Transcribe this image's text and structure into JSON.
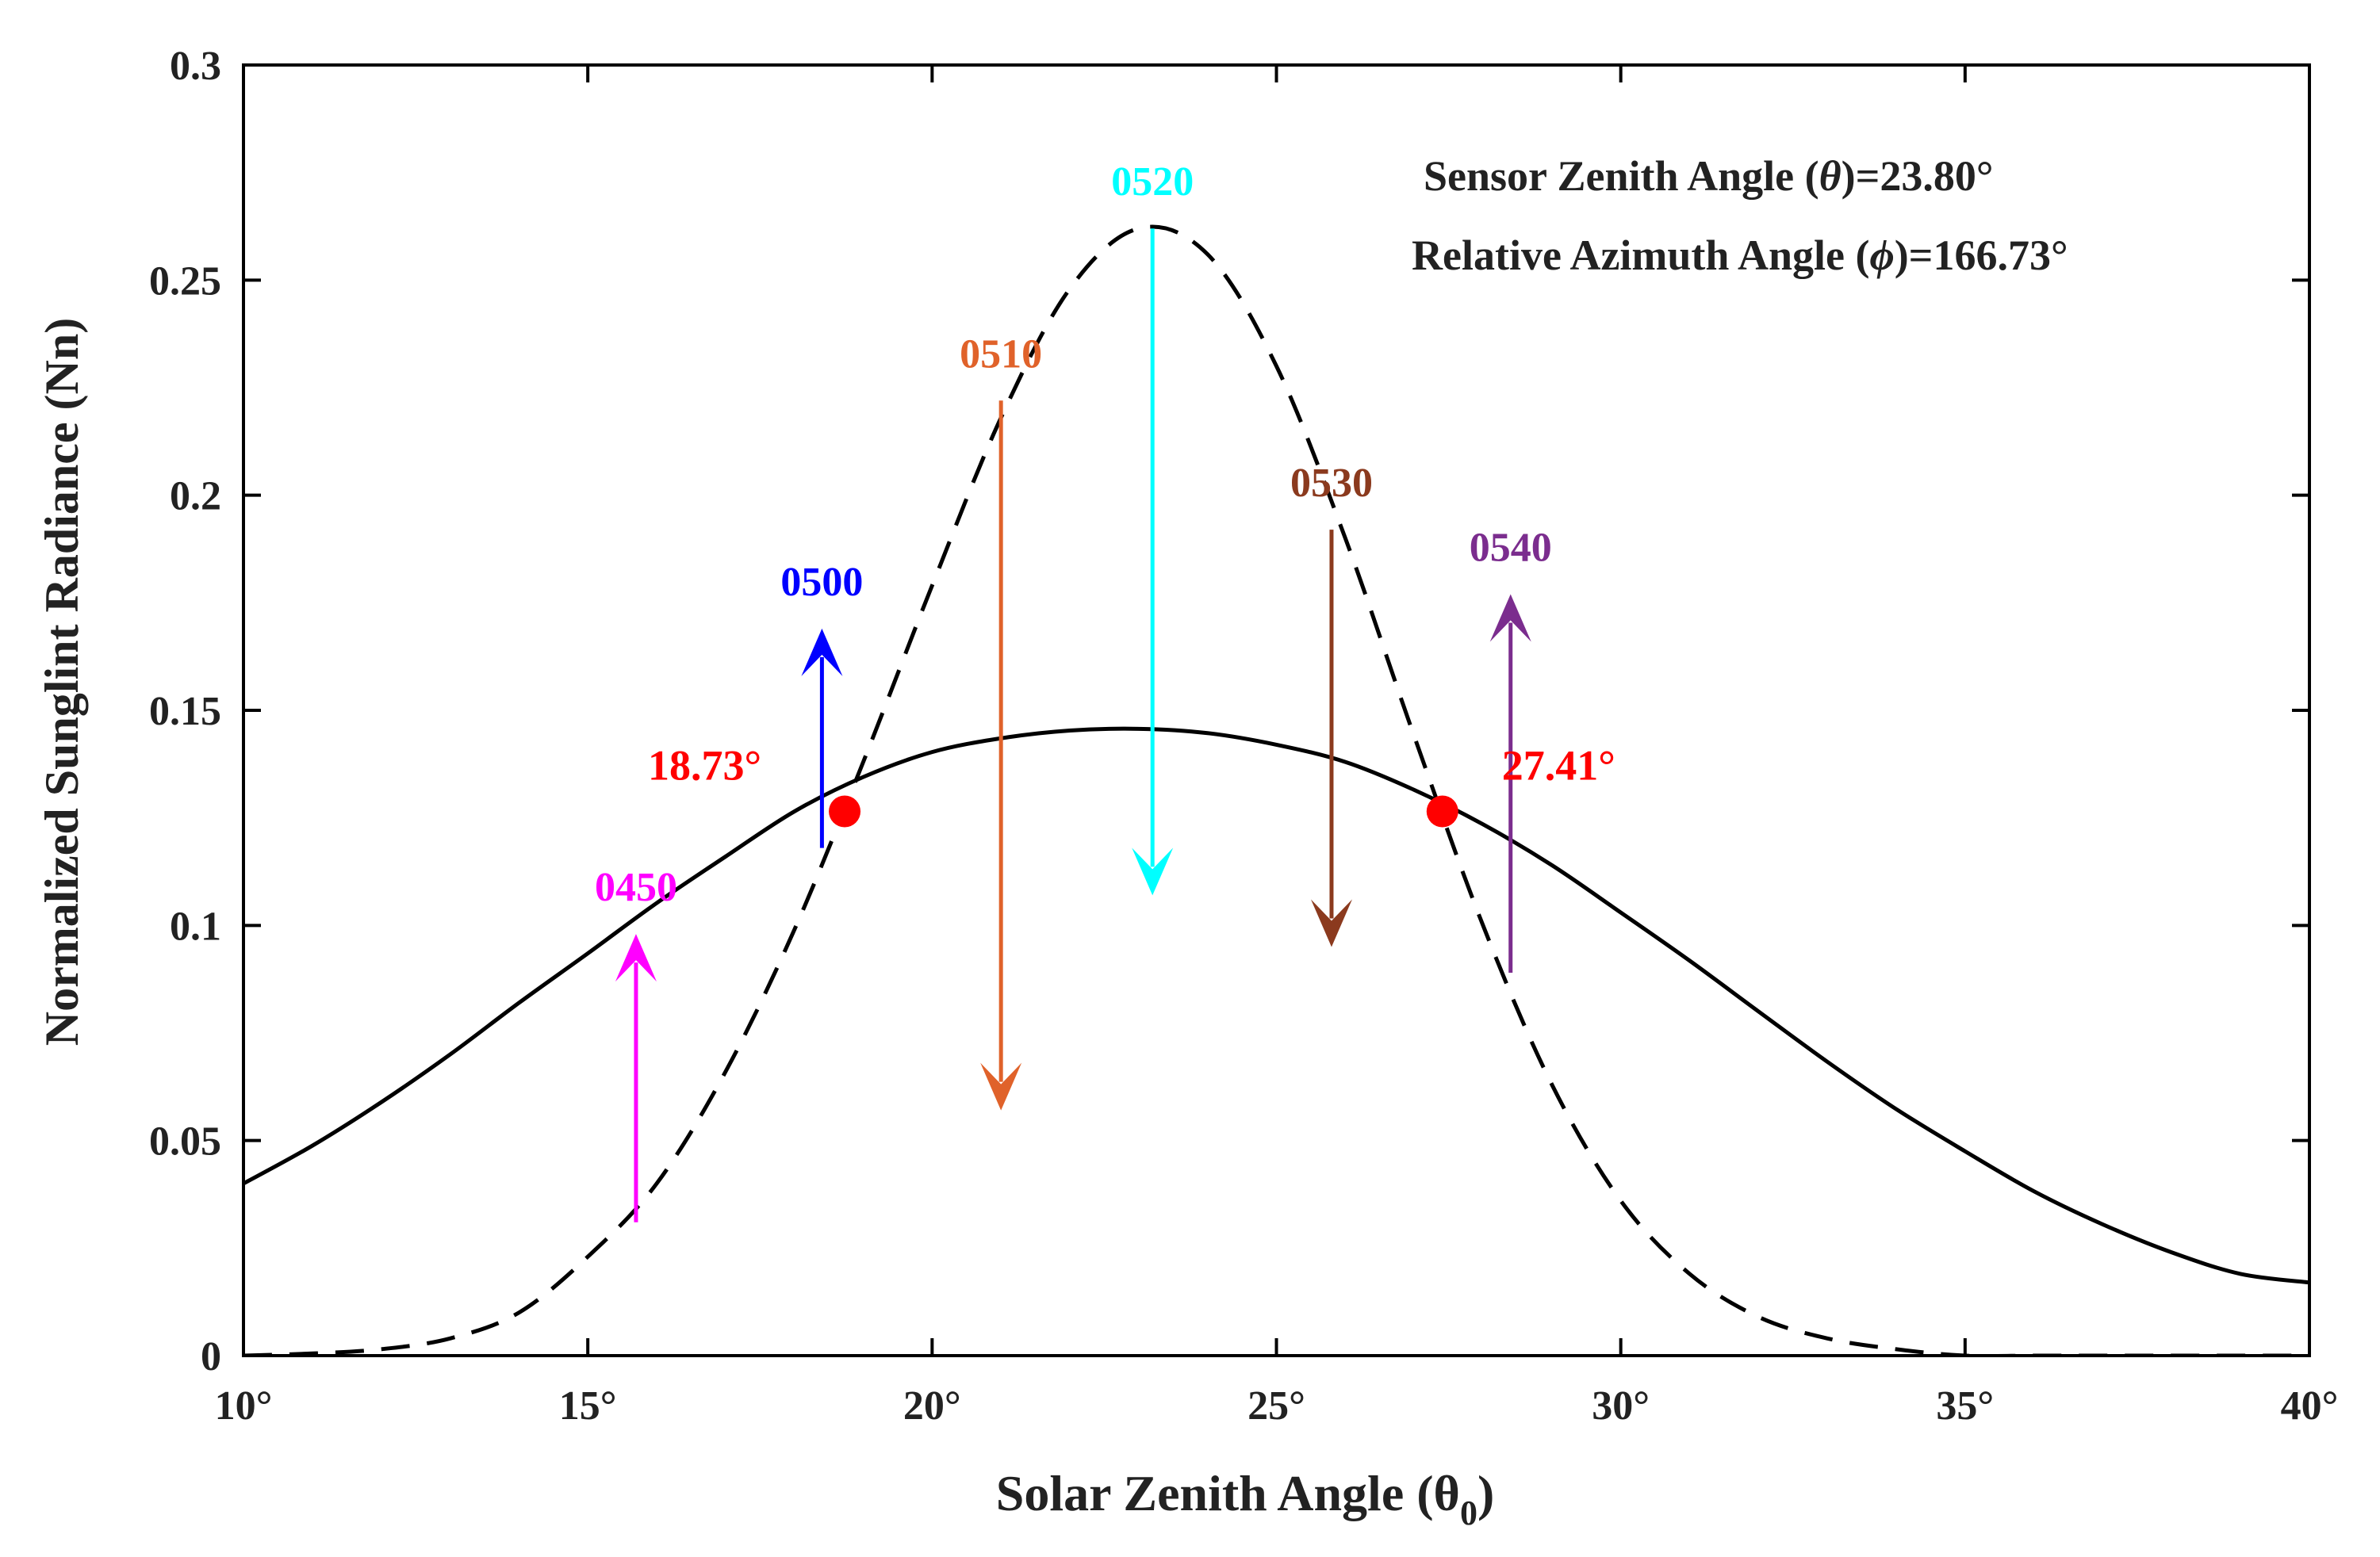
{
  "chart_data": {
    "type": "line",
    "title": "",
    "xlabel": "Solar Zenith Angle (θ",
    "xlabel_sub": "0",
    "xlabel_close": ")",
    "ylabel": "Normalized Sunglint Radiance (Nn)",
    "xlim": [
      10,
      40
    ],
    "ylim": [
      0,
      0.3
    ],
    "x_ticks": [
      10,
      15,
      20,
      25,
      30,
      35,
      40
    ],
    "x_tick_labels": [
      "10°",
      "15°",
      "20°",
      "25°",
      "30°",
      "35°",
      "40°"
    ],
    "y_ticks": [
      0,
      0.05,
      0.1,
      0.15,
      0.2,
      0.25,
      0.3
    ],
    "y_tick_labels": [
      "0",
      "0.05",
      "0.1",
      "0.15",
      "0.2",
      "0.25",
      "0.3"
    ],
    "series": [
      {
        "name": "solid",
        "style": "solid",
        "color": "#000000",
        "x": [
          10,
          11,
          12,
          13,
          14,
          15,
          16,
          17,
          18,
          19,
          20,
          21,
          22,
          23,
          24,
          25,
          26,
          27,
          28,
          29,
          30,
          31,
          32,
          33,
          34,
          35,
          36,
          37,
          38,
          39,
          40
        ],
        "values": [
          0.04,
          0.0488,
          0.0589,
          0.07,
          0.082,
          0.0935,
          0.1052,
          0.116,
          0.1265,
          0.1345,
          0.1403,
          0.1435,
          0.1453,
          0.1457,
          0.1447,
          0.142,
          0.138,
          0.1315,
          0.1235,
          0.114,
          0.103,
          0.0918,
          0.08,
          0.0683,
          0.0573,
          0.0475,
          0.0382,
          0.0305,
          0.024,
          0.019,
          0.017
        ]
      },
      {
        "name": "dashed",
        "style": "dashed",
        "color": "#000000",
        "x": [
          10,
          11,
          12,
          13,
          14,
          15,
          16,
          17,
          18,
          19,
          20,
          21,
          22,
          23,
          24,
          25,
          26,
          27,
          28,
          29,
          30,
          31,
          32,
          33,
          34,
          35,
          36,
          37,
          38,
          39,
          40
        ],
        "values": [
          0.0,
          0.0005,
          0.0015,
          0.004,
          0.01,
          0.023,
          0.04,
          0.066,
          0.099,
          0.138,
          0.179,
          0.218,
          0.248,
          0.262,
          0.256,
          0.23,
          0.19,
          0.144,
          0.1,
          0.063,
          0.036,
          0.019,
          0.009,
          0.004,
          0.0015,
          0.0,
          0.0,
          0.0,
          0.0,
          0.0,
          0.0
        ]
      }
    ],
    "intersections": [
      {
        "x": 18.73,
        "y": 0.1265,
        "label": "18.73°",
        "color": "#ff0000",
        "label_side": "left"
      },
      {
        "x": 27.41,
        "y": 0.1265,
        "label": "27.41°",
        "color": "#ff0000",
        "label_side": "right"
      }
    ],
    "arrows": [
      {
        "label": "0450",
        "x": 15.7,
        "y_from": 0.031,
        "y_to": 0.098,
        "direction": "up",
        "color": "#ff00ff"
      },
      {
        "label": "0500",
        "x": 18.4,
        "y_from": 0.118,
        "y_to": 0.169,
        "direction": "up",
        "color": "#0000ff"
      },
      {
        "label": "0510",
        "x": 21.0,
        "y_from": 0.222,
        "y_to": 0.057,
        "direction": "down",
        "color": "#e0622a"
      },
      {
        "label": "0520",
        "x": 23.2,
        "y_from": 0.262,
        "y_to": 0.107,
        "direction": "down",
        "color": "#00ffff"
      },
      {
        "label": "0530",
        "x": 25.8,
        "y_from": 0.192,
        "y_to": 0.095,
        "direction": "down",
        "color": "#8b3a1e"
      },
      {
        "label": "0540",
        "x": 28.4,
        "y_from": 0.089,
        "y_to": 0.177,
        "direction": "up",
        "color": "#7b2d8e"
      }
    ],
    "annotations": [
      {
        "text_prefix": "Sensor  Zenith Angle (",
        "symbol": "θ",
        "text_suffix": ")=23.80°"
      },
      {
        "text_prefix": "Relative Azimuth Angle (",
        "symbol": "ϕ",
        "text_suffix": ")=166.73°"
      }
    ]
  }
}
